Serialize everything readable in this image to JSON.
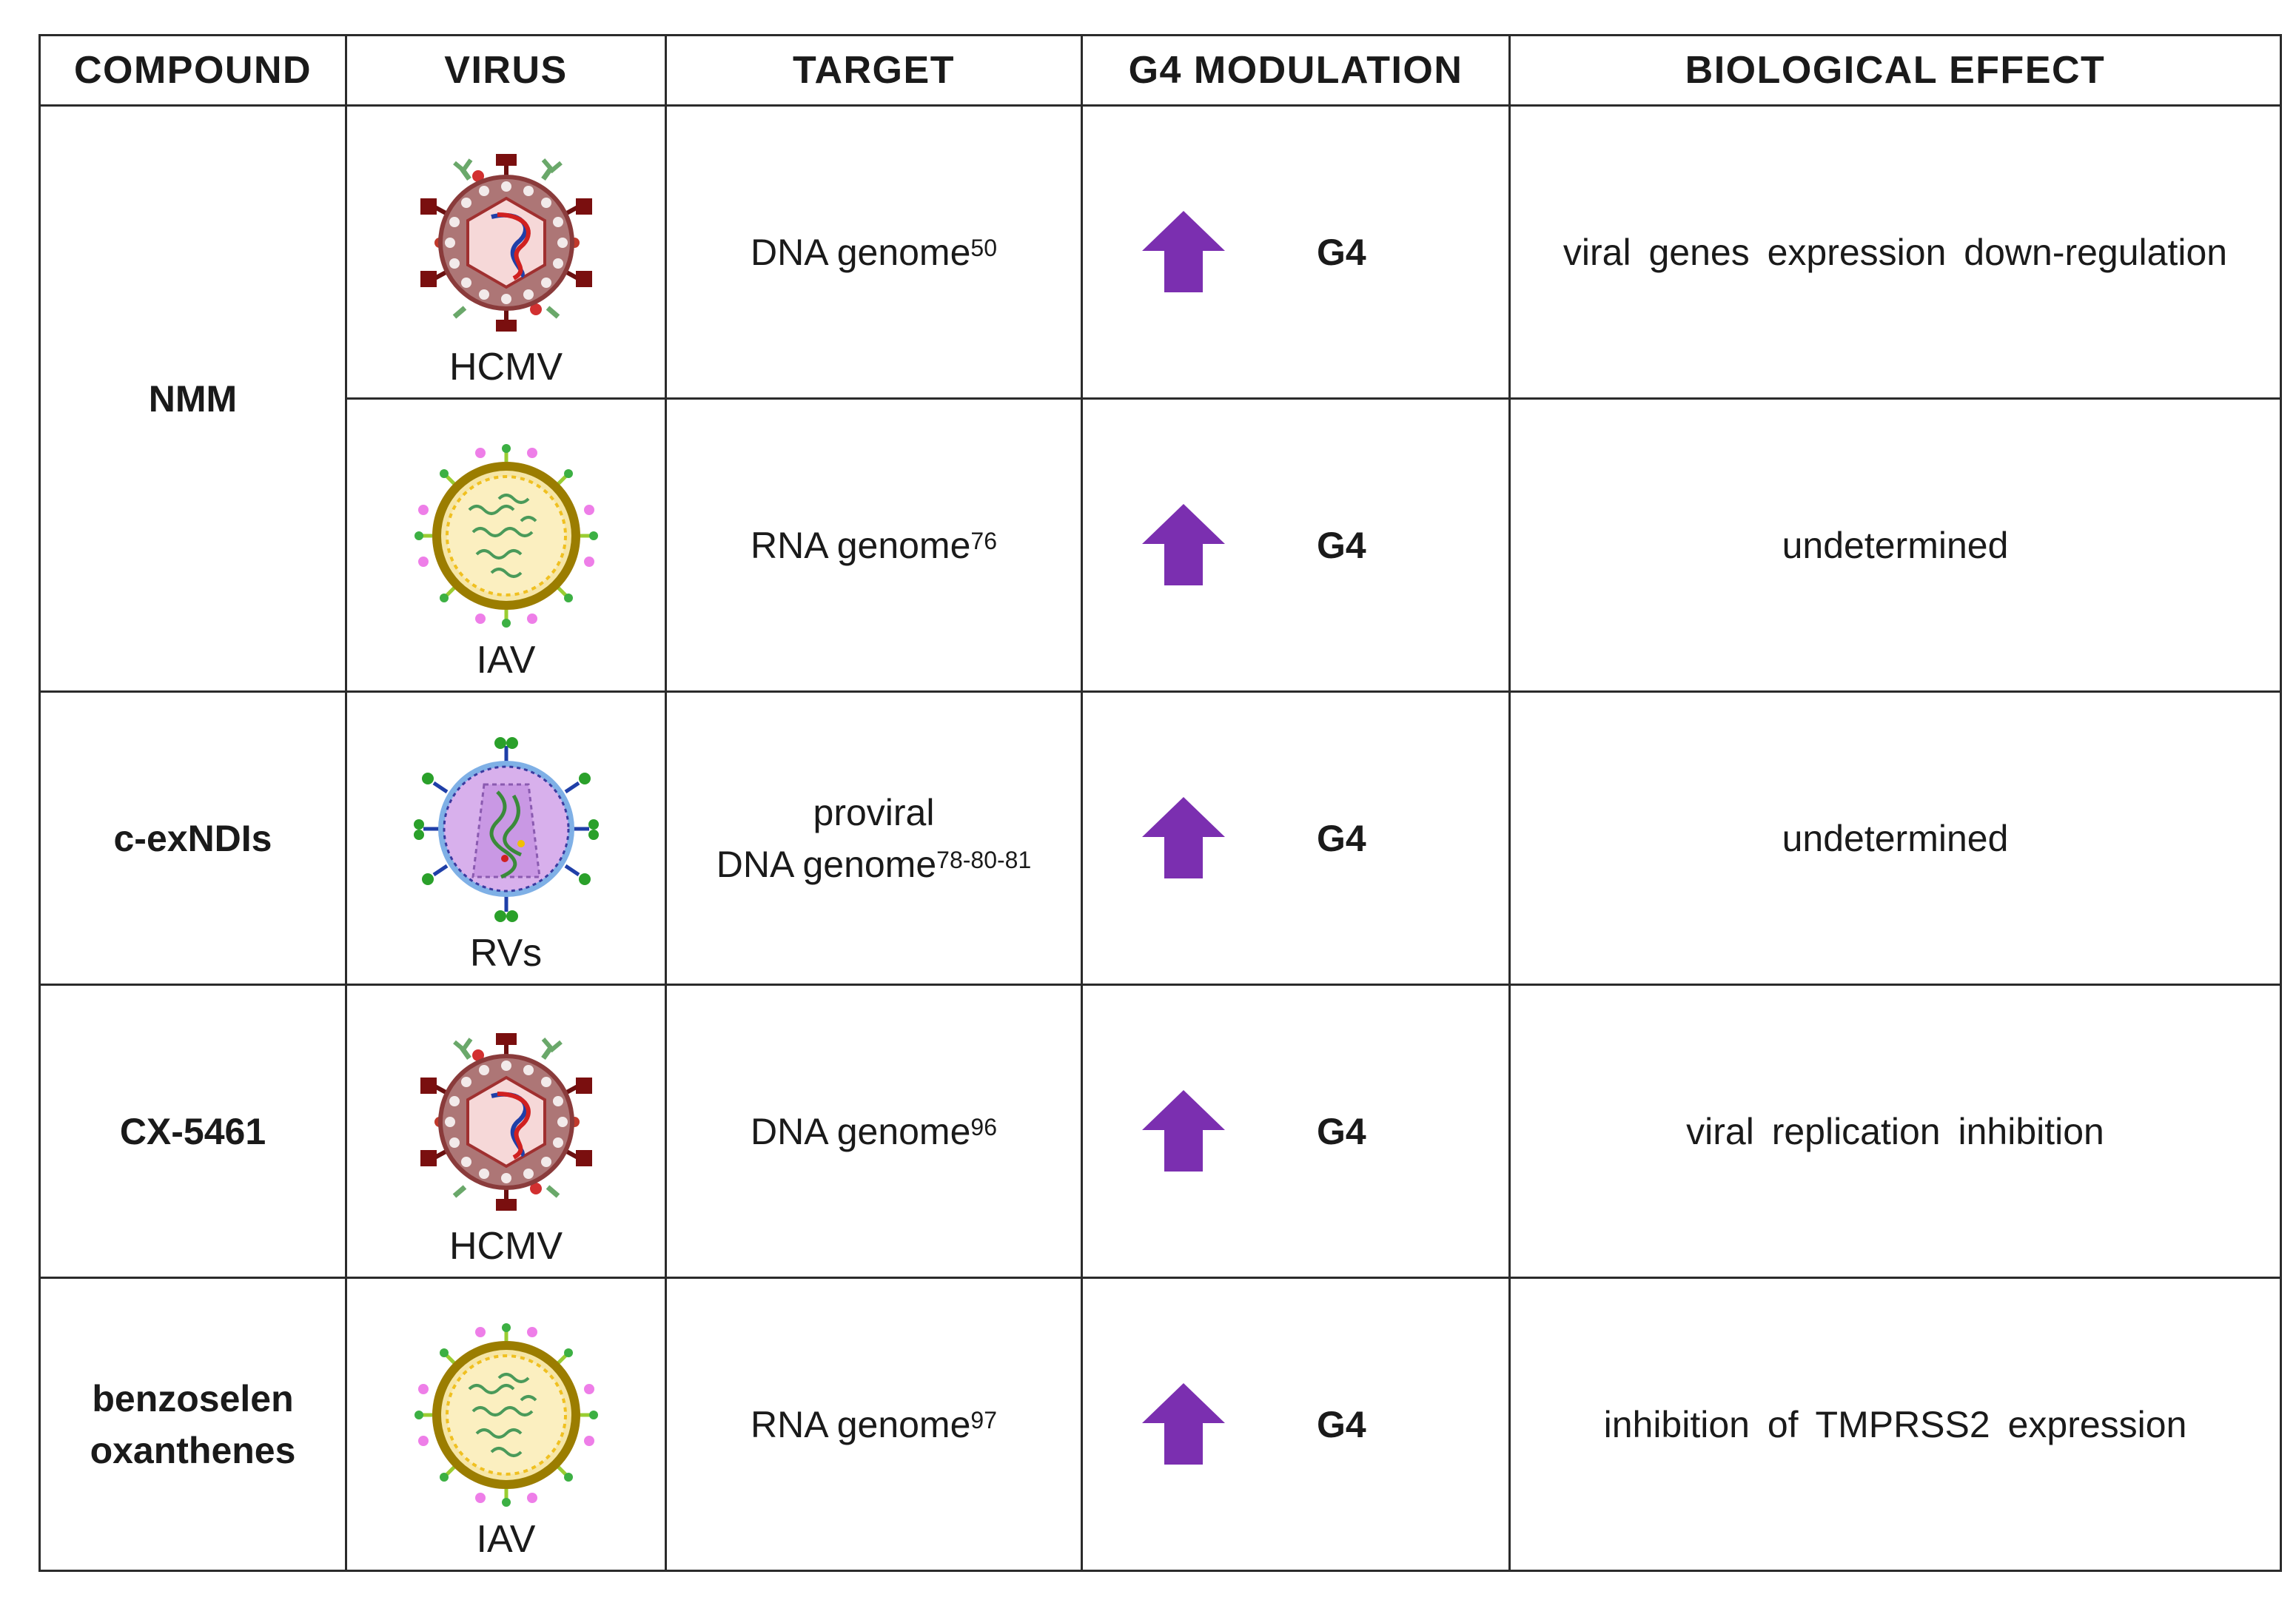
{
  "headers": [
    "COMPOUND",
    "VIRUS",
    "TARGET",
    "G4 MODULATION",
    "BIOLOGICAL EFFECT"
  ],
  "rows": [
    {
      "compound": "NMM",
      "virus": "HCMV",
      "virus_icon": "hcmv-virus-icon",
      "target": "DNA genome",
      "target_ref": "50",
      "modulation_icon": "up-arrow-icon",
      "modulation": "G4",
      "effect": "viral genes expression down-regulation"
    },
    {
      "compound": "",
      "virus": "IAV",
      "virus_icon": "iav-virus-icon",
      "target": "RNA genome",
      "target_ref": "76",
      "modulation_icon": "up-arrow-icon",
      "modulation": "G4",
      "effect": "undetermined"
    },
    {
      "compound": "c-exNDIs",
      "virus": "RVs",
      "virus_icon": "retrovirus-icon",
      "target_line1": "proviral",
      "target": "DNA genome",
      "target_ref": "78-80-81",
      "modulation_icon": "up-arrow-icon",
      "modulation": "G4",
      "effect": "undetermined"
    },
    {
      "compound": "CX-5461",
      "virus": "HCMV",
      "virus_icon": "hcmv-virus-icon",
      "target": "DNA genome",
      "target_ref": "96",
      "modulation_icon": "up-arrow-icon",
      "modulation": "G4",
      "effect": "viral replication inhibition"
    },
    {
      "compound_line1": "benzoselen",
      "compound_line2": "oxanthenes",
      "virus": "IAV",
      "virus_icon": "iav-virus-icon",
      "target": "RNA genome",
      "target_ref": "97",
      "modulation_icon": "up-arrow-icon",
      "modulation": "G4",
      "effect": "inhibition of TMPRSS2 expression"
    }
  ],
  "colors": {
    "arrow": "#7b2fb0",
    "border": "#2b2b2b"
  }
}
